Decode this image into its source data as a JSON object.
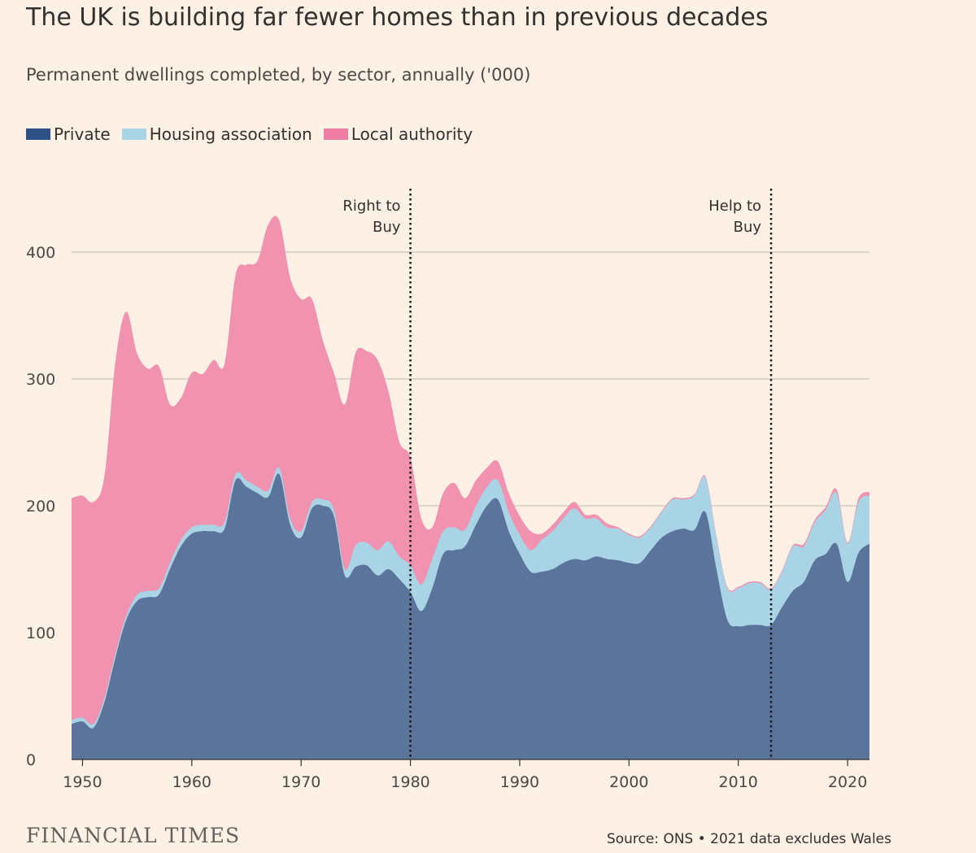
{
  "title": "The UK is building far fewer homes than in previous decades",
  "subtitle": "Permanent dwellings completed, by sector, annually ('000)",
  "logo": "FINANCIAL TIMES",
  "source": "Source: ONS • 2021 data excludes Wales",
  "colors": {
    "background": "#fdf1e6",
    "private": "#5a749c",
    "housing_association": "#a8d4e5",
    "local_authority": "#f193b0",
    "grid": "#cdc4bb"
  },
  "chart_data": {
    "type": "area",
    "stacked": true,
    "x": [
      1949,
      1950,
      1951,
      1952,
      1953,
      1954,
      1955,
      1956,
      1957,
      1958,
      1959,
      1960,
      1961,
      1962,
      1963,
      1964,
      1965,
      1966,
      1967,
      1968,
      1969,
      1970,
      1971,
      1972,
      1973,
      1974,
      1975,
      1976,
      1977,
      1978,
      1979,
      1980,
      1981,
      1982,
      1983,
      1984,
      1985,
      1986,
      1987,
      1988,
      1989,
      1990,
      1991,
      1992,
      1993,
      1994,
      1995,
      1996,
      1997,
      1998,
      1999,
      2000,
      2001,
      2002,
      2003,
      2004,
      2005,
      2006,
      2007,
      2008,
      2009,
      2010,
      2011,
      2012,
      2013,
      2014,
      2015,
      2016,
      2017,
      2018,
      2019,
      2020,
      2021,
      2022
    ],
    "series": [
      {
        "name": "Private",
        "values": [
          28,
          30,
          25,
          45,
          80,
          110,
          125,
          128,
          130,
          150,
          168,
          178,
          180,
          180,
          182,
          220,
          215,
          210,
          207,
          225,
          185,
          175,
          198,
          200,
          192,
          145,
          152,
          153,
          145,
          150,
          142,
          132,
          117,
          135,
          162,
          165,
          168,
          185,
          200,
          205,
          180,
          162,
          148,
          148,
          150,
          155,
          158,
          157,
          160,
          158,
          157,
          155,
          155,
          165,
          175,
          180,
          182,
          181,
          195,
          150,
          110,
          105,
          106,
          106,
          106,
          120,
          133,
          140,
          157,
          162,
          170,
          140,
          163,
          170
        ]
      },
      {
        "name": "Housing association",
        "values": [
          3,
          3,
          3,
          3,
          3,
          3,
          5,
          5,
          5,
          5,
          5,
          5,
          5,
          5,
          5,
          5,
          5,
          5,
          5,
          5,
          5,
          5,
          5,
          5,
          5,
          5,
          17,
          18,
          20,
          22,
          18,
          21,
          21,
          23,
          18,
          18,
          13,
          15,
          15,
          15,
          15,
          15,
          17,
          25,
          30,
          35,
          40,
          33,
          30,
          25,
          25,
          22,
          20,
          18,
          20,
          25,
          23,
          27,
          27,
          25,
          25,
          30,
          33,
          33,
          28,
          28,
          35,
          28,
          30,
          35,
          40,
          30,
          40,
          38
        ]
      },
      {
        "name": "Local authority",
        "values": [
          175,
          175,
          175,
          175,
          230,
          240,
          190,
          175,
          175,
          125,
          112,
          122,
          119,
          130,
          125,
          157,
          170,
          178,
          210,
          195,
          190,
          183,
          160,
          125,
          108,
          130,
          152,
          151,
          150,
          118,
          90,
          85,
          52,
          25,
          30,
          35,
          25,
          20,
          15,
          15,
          15,
          15,
          15,
          5,
          5,
          5,
          5,
          3,
          3,
          3,
          1,
          1,
          1,
          1,
          1,
          1,
          1,
          1,
          1,
          1,
          1,
          1,
          1,
          1,
          1,
          1,
          1,
          2,
          2,
          2,
          3,
          1,
          3,
          3
        ]
      }
    ],
    "ylim": [
      0,
      440
    ],
    "yticks": [
      0,
      100,
      200,
      300,
      400
    ],
    "xticks": [
      1950,
      1960,
      1970,
      1980,
      1990,
      2000,
      2010,
      2020
    ],
    "grid": true,
    "legend": "top-left",
    "annotations": [
      {
        "x": 1980,
        "line1": "Right to",
        "line2": "Buy"
      },
      {
        "x": 2013,
        "line1": "Help to",
        "line2": "Buy"
      }
    ]
  }
}
